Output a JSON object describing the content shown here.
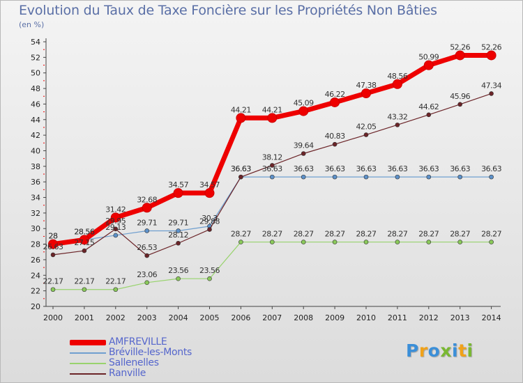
{
  "title": "Evolution du Taux de Taxe Foncière sur les Propriétés Non Bâties",
  "unit_label": "(en %)",
  "logo": {
    "text": "Proxiti",
    "letters": [
      {
        "ch": "P",
        "color": "#3b8fd8"
      },
      {
        "ch": "r",
        "color": "#f0a21a"
      },
      {
        "ch": "o",
        "color": "#3b8fd8"
      },
      {
        "ch": "x",
        "color": "#79b832"
      },
      {
        "ch": "i",
        "color": "#3b8fd8"
      },
      {
        "ch": "t",
        "color": "#f0a21a"
      },
      {
        "ch": "i",
        "color": "#79b832"
      }
    ]
  },
  "chart_data": {
    "type": "line",
    "title": "Evolution du Taux de Taxe Foncière sur les Propriétés Non Bâties",
    "ylabel": "(en %)",
    "xlabel": "",
    "x": [
      "2000",
      "2001",
      "2002",
      "2003",
      "2004",
      "2005",
      "2006",
      "2007",
      "2008",
      "2009",
      "2010",
      "2011",
      "2012",
      "2013",
      "2014"
    ],
    "ylim": [
      20,
      54
    ],
    "yticks": [
      20,
      22,
      24,
      26,
      28,
      30,
      32,
      34,
      36,
      38,
      40,
      42,
      44,
      46,
      48,
      50,
      52,
      54
    ],
    "grid": false,
    "legend_position": "bottom-left",
    "series": [
      {
        "name": "AMFREVILLE",
        "color": "#ee0000",
        "marker": "#ee0000",
        "width": 7,
        "labels": true,
        "values": [
          28,
          28.56,
          31.42,
          32.68,
          34.57,
          34.57,
          44.21,
          44.21,
          45.09,
          46.22,
          47.38,
          48.56,
          50.99,
          52.26,
          52.26
        ]
      },
      {
        "name": "Bréville-les-Monts",
        "color": "#6f9fcf",
        "marker": "#5d91c9",
        "width": 1.2,
        "labels": true,
        "values": [
          28,
          28.56,
          29.13,
          29.71,
          29.71,
          30.3,
          36.63,
          36.63,
          36.63,
          36.63,
          36.63,
          36.63,
          36.63,
          36.63,
          36.63
        ]
      },
      {
        "name": "Sallenelles",
        "color": "#98d36d",
        "marker": "#8ac95a",
        "width": 1.2,
        "labels": true,
        "values": [
          22.17,
          22.17,
          22.17,
          23.06,
          23.56,
          23.56,
          28.27,
          28.27,
          28.27,
          28.27,
          28.27,
          28.27,
          28.27,
          28.27,
          28.27
        ]
      },
      {
        "name": "Ranville",
        "color": "#6b2428",
        "marker": "#6b2428",
        "width": 1.2,
        "labels": true,
        "values": [
          26.63,
          27.15,
          29.95,
          26.53,
          28.12,
          29.88,
          36.63,
          38.12,
          39.64,
          40.83,
          42.05,
          43.32,
          44.62,
          45.96,
          47.34
        ]
      }
    ]
  }
}
